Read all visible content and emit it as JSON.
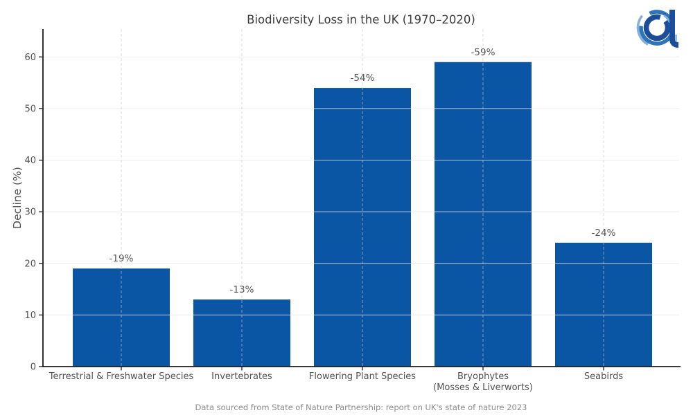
{
  "chart_data": {
    "type": "bar",
    "title": "Biodiversity Loss in the UK (1970–2020)",
    "ylabel": "Decline (%)",
    "xlabel": "",
    "categories": [
      "Terrestrial & Freshwater Species",
      "Invertebrates",
      "Flowering Plant Species",
      "Bryophytes\n(Mosses & Liverworts)",
      "Seabirds"
    ],
    "values": [
      19,
      13,
      54,
      59,
      24
    ],
    "bar_labels": [
      "-19%",
      "-13%",
      "-54%",
      "-59%",
      "-24%"
    ],
    "yticks": [
      0,
      10,
      20,
      30,
      40,
      50,
      60
    ],
    "ylim": [
      0,
      65.4
    ],
    "grid": {
      "horizontal": "solid",
      "vertical": "dashed",
      "visible": true
    },
    "legend": "none",
    "footer": "Data sourced from State of Nature Partnership: report on UK's state of nature 2023"
  },
  "colors": {
    "bar": "#0b55a5",
    "title_text": "#3c3c3c",
    "tick_text": "#525252",
    "value_label_text": "#565656",
    "footer_text": "#8a8a8a",
    "axis_spine": "#1c1c1c",
    "grid_horizontal": "#e8e8e8",
    "grid_vertical": "#c9c9c9",
    "logo_dark": "#1b4d99",
    "logo_mid": "#2e74b8",
    "logo_light": "#85b1dc"
  },
  "logo": {
    "name": "stylized-a-arcs-logo"
  }
}
